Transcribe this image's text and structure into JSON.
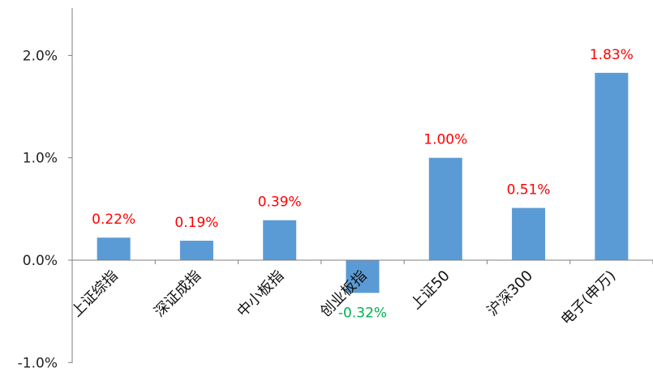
{
  "chart_data": {
    "type": "bar",
    "categories": [
      "上证综指",
      "深证成指",
      "中小板指",
      "创业板指",
      "上证50",
      "沪深300",
      "电子(申万)"
    ],
    "values": [
      0.22,
      0.19,
      0.39,
      -0.32,
      1.0,
      0.51,
      1.83
    ],
    "data_labels": [
      "0.22%",
      "0.19%",
      "0.39%",
      "-0.32%",
      "1.00%",
      "0.51%",
      "1.83%"
    ],
    "yticks": [
      -1.0,
      0.0,
      1.0,
      2.0
    ],
    "ytick_labels": [
      "-1.0%",
      "0.0%",
      "1.0%",
      "2.0%"
    ],
    "ylim": [
      -1.0,
      2.0
    ],
    "grid": false,
    "legend": "none",
    "colors": {
      "bar": "#5B9BD5",
      "positive_label": "#FF0000",
      "negative_label": "#00B050",
      "axis": "#7f7f7f"
    }
  }
}
